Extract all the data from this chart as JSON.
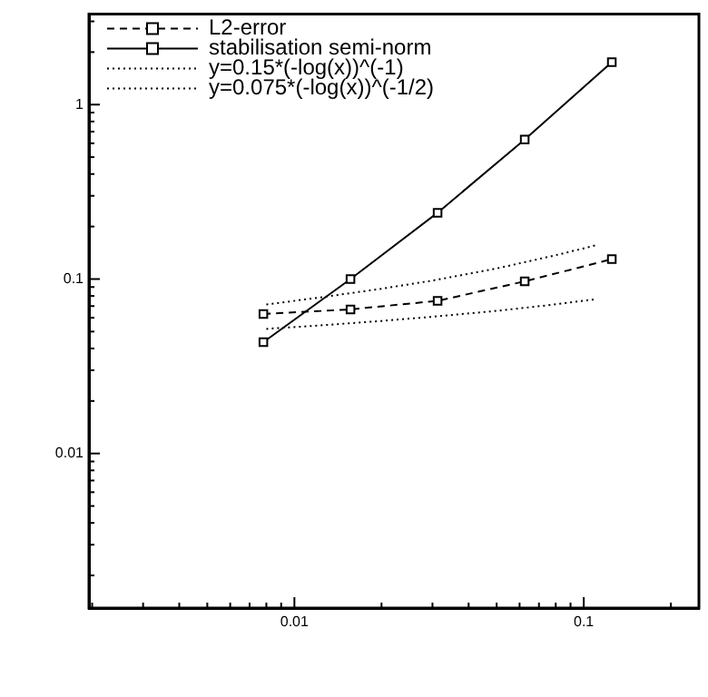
{
  "chart_data": {
    "type": "line",
    "log": "xy",
    "grid": false,
    "legend": "top left",
    "xlim": [
      0.00195,
      0.25
    ],
    "ylim": [
      0.0013,
      3.3
    ],
    "xticks": [
      {
        "value": 0.002,
        "label": null
      },
      {
        "value": 0.003,
        "label": null
      },
      {
        "value": 0.004,
        "label": null
      },
      {
        "value": 0.005,
        "label": null
      },
      {
        "value": 0.006,
        "label": null
      },
      {
        "value": 0.007,
        "label": null
      },
      {
        "value": 0.008,
        "label": null
      },
      {
        "value": 0.009,
        "label": null
      },
      0.01,
      {
        "value": 0.02,
        "label": null
      },
      {
        "value": 0.03,
        "label": null
      },
      {
        "value": 0.04,
        "label": null
      },
      {
        "value": 0.05,
        "label": null
      },
      {
        "value": 0.06,
        "label": null
      },
      {
        "value": 0.07,
        "label": null
      },
      {
        "value": 0.08,
        "label": null
      },
      {
        "value": 0.09,
        "label": null
      },
      0.1,
      {
        "value": 0.2,
        "label": null
      }
    ],
    "yticks": [
      {
        "value": 0.002,
        "label": null
      },
      {
        "value": 0.003,
        "label": null
      },
      {
        "value": 0.004,
        "label": null
      },
      {
        "value": 0.005,
        "label": null
      },
      {
        "value": 0.006,
        "label": null
      },
      {
        "value": 0.007,
        "label": null
      },
      {
        "value": 0.008,
        "label": null
      },
      {
        "value": 0.009,
        "label": null
      },
      0.01,
      {
        "value": 0.02,
        "label": null
      },
      {
        "value": 0.03,
        "label": null
      },
      {
        "value": 0.04,
        "label": null
      },
      {
        "value": 0.05,
        "label": null
      },
      {
        "value": 0.06,
        "label": null
      },
      {
        "value": 0.07,
        "label": null
      },
      {
        "value": 0.08,
        "label": null
      },
      {
        "value": 0.09,
        "label": null
      },
      0.1,
      {
        "value": 0.2,
        "label": null
      },
      {
        "value": 0.3,
        "label": null
      },
      {
        "value": 0.4,
        "label": null
      },
      {
        "value": 0.5,
        "label": null
      },
      {
        "value": 0.6,
        "label": null
      },
      {
        "value": 0.7,
        "label": null
      },
      {
        "value": 0.8,
        "label": null
      },
      {
        "value": 0.9,
        "label": null
      },
      1,
      {
        "value": 2,
        "label": null
      },
      {
        "value": 3,
        "label": null
      }
    ],
    "series": [
      {
        "name": "L2-error",
        "color": "#000000",
        "line_style": "dashed",
        "marker": "square",
        "x": [
          0.0078125,
          0.015625,
          0.03125,
          0.0625,
          0.125
        ],
        "values": [
          0.063,
          0.067,
          0.075,
          0.097,
          0.13
        ]
      },
      {
        "name": "stabilisation semi-norm",
        "color": "#000000",
        "line_style": "solid",
        "marker": "square",
        "x": [
          0.0078125,
          0.015625,
          0.03125,
          0.0625,
          0.125
        ],
        "values": [
          0.0435,
          0.1,
          0.24,
          0.63,
          1.75
        ]
      },
      {
        "name": "y=0.15*(-log(x))^(-1)",
        "color": "#000000",
        "line_style": "dotted",
        "marker": "none",
        "x": [
          0.008,
          0.012,
          0.02,
          0.03,
          0.05,
          0.08,
          0.11
        ],
        "values": [
          0.0715,
          0.078,
          0.088,
          0.098,
          0.115,
          0.137,
          0.156
        ]
      },
      {
        "name": "y=0.075*(-log(x))^(-1/2)",
        "color": "#000000",
        "line_style": "dotted",
        "marker": "none",
        "x": [
          0.008,
          0.012,
          0.02,
          0.03,
          0.05,
          0.08,
          0.11
        ],
        "values": [
          0.0518,
          0.0541,
          0.0575,
          0.0608,
          0.0657,
          0.0716,
          0.0766
        ]
      }
    ]
  }
}
